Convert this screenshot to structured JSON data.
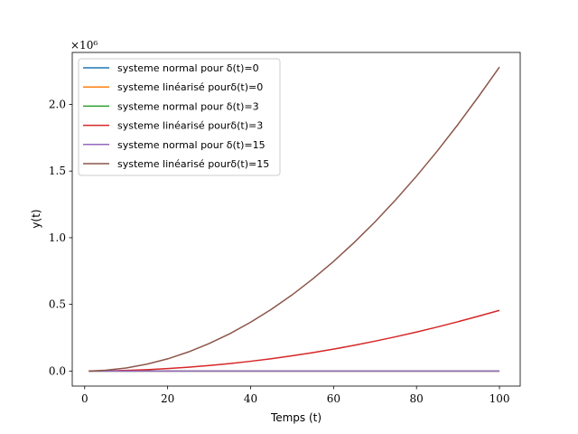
{
  "chart_data": {
    "type": "line",
    "xlabel": "Temps (t)",
    "ylabel": "y(t)",
    "offset_text": "×10⁶",
    "xlim": [
      -3,
      105
    ],
    "ylim": [
      -113000,
      2390000
    ],
    "xticks": [
      0,
      20,
      40,
      60,
      80,
      100
    ],
    "yticks": [
      0,
      500000,
      1000000,
      1500000,
      2000000
    ],
    "xtick_labels": [
      "0",
      "20",
      "40",
      "60",
      "80",
      "100"
    ],
    "ytick_labels": [
      "0.0",
      "0.5",
      "1.0",
      "1.5",
      "2.0"
    ],
    "grid": false,
    "legend_position": "upper-left",
    "x": [
      1,
      5,
      10,
      15,
      20,
      25,
      30,
      35,
      40,
      45,
      50,
      55,
      60,
      65,
      70,
      75,
      80,
      85,
      90,
      95,
      100
    ],
    "series": [
      {
        "name": "systeme normal pour δ(t)=0",
        "color": "#1f77b4",
        "values": [
          0,
          0,
          0,
          0,
          0,
          0,
          0,
          0,
          0,
          0,
          0,
          0,
          0,
          0,
          0,
          0,
          0,
          0,
          0,
          0,
          0
        ]
      },
      {
        "name": "systeme linéarisé pourδ(t)=0",
        "color": "#ff7f0e",
        "values": [
          0,
          0,
          0,
          0,
          0,
          0,
          0,
          0,
          0,
          0,
          0,
          0,
          0,
          0,
          0,
          0,
          0,
          0,
          0,
          0,
          0
        ]
      },
      {
        "name": "systeme normal pour δ(t)=3",
        "color": "#2ca02c",
        "values": [
          0,
          0,
          0,
          0,
          0,
          0,
          0,
          0,
          0,
          0,
          0,
          0,
          0,
          0,
          0,
          0,
          0,
          0,
          0,
          0,
          0
        ]
      },
      {
        "name": "systeme linéarisé pourδ(t)=3",
        "color": "#d62728",
        "values": [
          0,
          1100,
          4600,
          10300,
          18300,
          28600,
          41100,
          56000,
          73100,
          92500,
          114000,
          138000,
          164000,
          193000,
          224000,
          257000,
          292000,
          330000,
          370000,
          412000,
          455000
        ]
      },
      {
        "name": "systeme normal pour δ(t)=15",
        "color": "#9467bd",
        "values": [
          0,
          0,
          0,
          0,
          0,
          0,
          0,
          0,
          0,
          0,
          0,
          0,
          0,
          0,
          0,
          0,
          0,
          0,
          0,
          0,
          0
        ]
      },
      {
        "name": "systeme linéarisé pourδ(t)=15",
        "color": "#8c564b",
        "values": [
          0,
          5700,
          22800,
          51300,
          91200,
          143000,
          206000,
          280000,
          366000,
          463000,
          571000,
          691000,
          822000,
          965000,
          1119000,
          1285000,
          1462000,
          1650000,
          1850000,
          2061000,
          2280000
        ]
      }
    ]
  }
}
